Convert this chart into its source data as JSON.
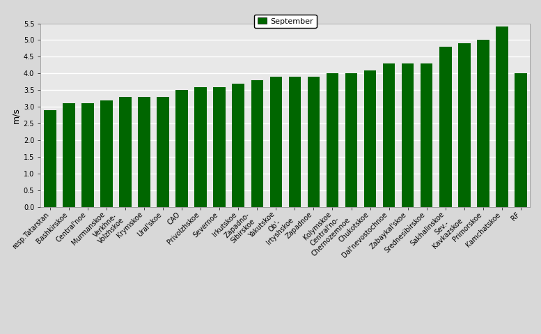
{
  "categories": [
    "resp.Tatarstan",
    "Bashkirskoe",
    "Central'noe",
    "Murmanskoe",
    "Verkhne-\nVolzhskoe",
    "Krymskoe",
    "Ural'skoe",
    "CAO",
    "Privolzhskoe",
    "Severnoe",
    "Irkutskoe",
    "Zapadno-\nSibirskoe",
    "Yakutskoe",
    "Ob'-\nIrtyshskoe",
    "Zapadnoe",
    "Kolymskoe",
    "Central'no-\nChernozemnoe",
    "Chukotskoe",
    "Dal'nevostochnoe",
    "Zabaykal'skoe",
    "Srednesibirskoe",
    "Sakhalinskoe",
    "Sev.-\nKavkazskoe",
    "Primorskoe",
    "Kamchatskoe",
    "RF"
  ],
  "values": [
    2.9,
    3.1,
    3.1,
    3.2,
    3.3,
    3.3,
    3.3,
    3.5,
    3.6,
    3.6,
    3.7,
    3.8,
    3.9,
    3.9,
    3.9,
    4.0,
    4.0,
    4.1,
    4.3,
    4.3,
    4.3,
    4.8,
    4.9,
    5.0,
    5.4,
    4.0
  ],
  "bar_color": "#006600",
  "ylabel": "m/s",
  "ylim": [
    0,
    5.5
  ],
  "yticks": [
    0,
    0.5,
    1.0,
    1.5,
    2.0,
    2.5,
    3.0,
    3.5,
    4.0,
    4.5,
    5.0,
    5.5
  ],
  "legend_label": "September",
  "legend_color": "#006600",
  "background_color": "#d8d8d8",
  "plot_area_color": "#e8e8e8",
  "grid_color": "#ffffff",
  "tick_fontsize": 7.0,
  "ylabel_fontsize": 9
}
